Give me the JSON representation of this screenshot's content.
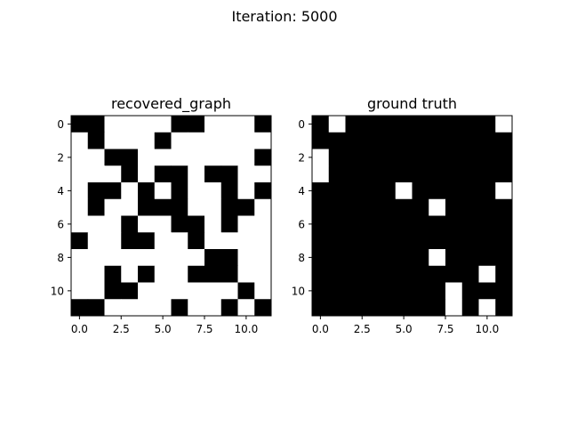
{
  "suptitle": "Iteration: 5000",
  "chart_data": [
    {
      "type": "heatmap",
      "title": "recovered_graph",
      "colormap": "gray_r",
      "colors": {
        "one": "#000000",
        "zero": "#ffffff"
      },
      "xlim": [
        -0.5,
        11.5
      ],
      "ylim": [
        11.5,
        -0.5
      ],
      "xticks": [
        "0.0",
        "2.5",
        "5.0",
        "7.5",
        "10.0"
      ],
      "xtick_values": [
        0,
        2.5,
        5,
        7.5,
        10
      ],
      "yticks": [
        "0",
        "2",
        "4",
        "6",
        "8",
        "10"
      ],
      "ytick_values": [
        0,
        2,
        4,
        6,
        8,
        10
      ],
      "matrix": [
        [
          1,
          1,
          0,
          0,
          0,
          0,
          1,
          1,
          0,
          0,
          0,
          1
        ],
        [
          0,
          1,
          0,
          0,
          0,
          1,
          0,
          0,
          0,
          0,
          0,
          0
        ],
        [
          0,
          0,
          1,
          1,
          0,
          0,
          0,
          0,
          0,
          0,
          0,
          1
        ],
        [
          0,
          0,
          0,
          1,
          0,
          1,
          1,
          0,
          1,
          1,
          0,
          0
        ],
        [
          0,
          1,
          1,
          0,
          1,
          0,
          1,
          0,
          0,
          1,
          0,
          1
        ],
        [
          0,
          1,
          0,
          0,
          1,
          1,
          1,
          0,
          0,
          1,
          1,
          0
        ],
        [
          0,
          0,
          0,
          1,
          0,
          0,
          1,
          1,
          0,
          1,
          0,
          0
        ],
        [
          1,
          0,
          0,
          1,
          1,
          0,
          0,
          1,
          0,
          0,
          0,
          0
        ],
        [
          0,
          0,
          0,
          0,
          0,
          0,
          0,
          0,
          1,
          1,
          0,
          0
        ],
        [
          0,
          0,
          1,
          0,
          1,
          0,
          0,
          1,
          1,
          1,
          0,
          0
        ],
        [
          0,
          0,
          1,
          1,
          0,
          0,
          0,
          0,
          0,
          0,
          1,
          0
        ],
        [
          1,
          1,
          0,
          0,
          0,
          0,
          1,
          0,
          0,
          1,
          0,
          1
        ]
      ]
    },
    {
      "type": "heatmap",
      "title": "ground truth",
      "colormap": "gray_r",
      "colors": {
        "one": "#000000",
        "zero": "#ffffff"
      },
      "xlim": [
        -0.5,
        11.5
      ],
      "ylim": [
        11.5,
        -0.5
      ],
      "xticks": [
        "0.0",
        "2.5",
        "5.0",
        "7.5",
        "10.0"
      ],
      "xtick_values": [
        0,
        2.5,
        5,
        7.5,
        10
      ],
      "yticks": [
        "0",
        "2",
        "4",
        "6",
        "8",
        "10"
      ],
      "ytick_values": [
        0,
        2,
        4,
        6,
        8,
        10
      ],
      "matrix": [
        [
          1,
          0,
          1,
          1,
          1,
          1,
          1,
          1,
          1,
          1,
          1,
          0
        ],
        [
          1,
          1,
          1,
          1,
          1,
          1,
          1,
          1,
          1,
          1,
          1,
          1
        ],
        [
          0,
          1,
          1,
          1,
          1,
          1,
          1,
          1,
          1,
          1,
          1,
          1
        ],
        [
          0,
          1,
          1,
          1,
          1,
          1,
          1,
          1,
          1,
          1,
          1,
          1
        ],
        [
          1,
          1,
          1,
          1,
          1,
          0,
          1,
          1,
          1,
          1,
          1,
          0
        ],
        [
          1,
          1,
          1,
          1,
          1,
          1,
          1,
          0,
          1,
          1,
          1,
          1
        ],
        [
          1,
          1,
          1,
          1,
          1,
          1,
          1,
          1,
          1,
          1,
          1,
          1
        ],
        [
          1,
          1,
          1,
          1,
          1,
          1,
          1,
          1,
          1,
          1,
          1,
          1
        ],
        [
          1,
          1,
          1,
          1,
          1,
          1,
          1,
          0,
          1,
          1,
          1,
          1
        ],
        [
          1,
          1,
          1,
          1,
          1,
          1,
          1,
          1,
          1,
          1,
          0,
          1
        ],
        [
          1,
          1,
          1,
          1,
          1,
          1,
          1,
          1,
          0,
          1,
          1,
          1
        ],
        [
          1,
          1,
          1,
          1,
          1,
          1,
          1,
          1,
          0,
          1,
          0,
          1
        ]
      ]
    }
  ]
}
